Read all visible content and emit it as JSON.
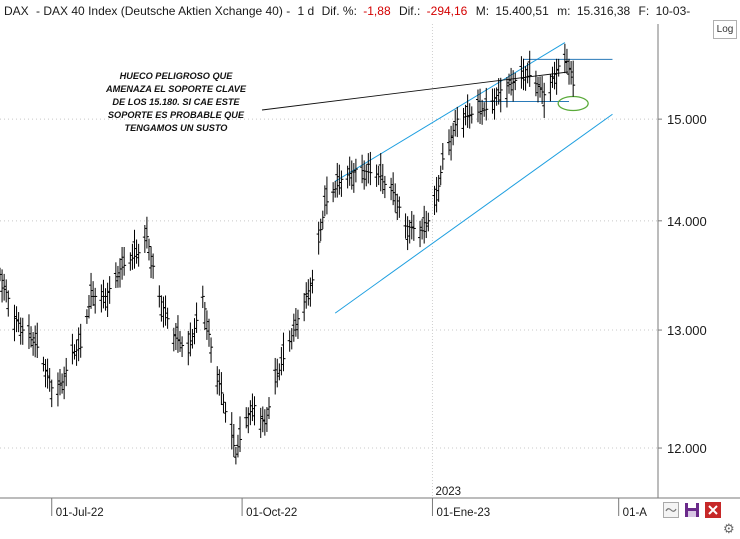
{
  "header": {
    "symbol": "DAX",
    "name": "DAX 40 Index (Deutsche Aktien Xchange 40)",
    "interval": "1 d",
    "dif_pct_label": "Dif. %:",
    "dif_pct": "-1,88",
    "dif_label": "Dif.:",
    "dif": "-294,16",
    "max_label": "M:",
    "max": "15.400,51",
    "min_label": "m:",
    "min": "15.316,38",
    "date_label": "F:",
    "date": "10-03-"
  },
  "log_button": "Log",
  "annotation": [
    "HUECO PELIGROSO QUE",
    "AMENAZA EL SOPORTE CLAVE",
    "DE LOS 15.180. SI CAE ESTE",
    "SOPORTE ES PROBABLE QUE",
    "TENGAMOS UN SUSTO"
  ],
  "chart_data": {
    "type": "ohlc",
    "title": "DAX 40 Index (Deutsche Aktien Xchange 40)",
    "xlabel": "",
    "ylabel": "",
    "y_scale": "log",
    "ylim": [
      11600,
      16000
    ],
    "xlim": [
      "2022-06-06",
      "2023-04-20"
    ],
    "y_ticks": [
      {
        "value": 12000,
        "label": "12.000"
      },
      {
        "value": 13000,
        "label": "13.000"
      },
      {
        "value": 14000,
        "label": "14.000"
      },
      {
        "value": 15000,
        "label": "15.000"
      }
    ],
    "x_ticks": [
      {
        "date": "2022-07-01",
        "label": "01-Jul-22"
      },
      {
        "date": "2022-10-01",
        "label": "01-Oct-22"
      },
      {
        "date": "2023-01-01",
        "label": "01-Ene-23"
      },
      {
        "date": "2023-04-01",
        "label": "01-A"
      }
    ],
    "year_marker": {
      "date": "2023-01-01",
      "label": "2023"
    },
    "grid": "horizontal dotted",
    "series": [
      {
        "type": "close",
        "points": [
          [
            "2022-06-06",
            13500
          ],
          [
            "2022-06-13",
            13120
          ],
          [
            "2022-06-17",
            13000
          ],
          [
            "2022-06-24",
            12850
          ],
          [
            "2022-07-01",
            12500
          ],
          [
            "2022-07-06",
            12550
          ],
          [
            "2022-07-11",
            12800
          ],
          [
            "2022-07-15",
            12850
          ],
          [
            "2022-07-20",
            13300
          ],
          [
            "2022-07-27",
            13300
          ],
          [
            "2022-08-03",
            13550
          ],
          [
            "2022-08-12",
            13700
          ],
          [
            "2022-08-16",
            13850
          ],
          [
            "2022-08-22",
            13300
          ],
          [
            "2022-08-29",
            12950
          ],
          [
            "2022-09-05",
            12800
          ],
          [
            "2022-09-12",
            13300
          ],
          [
            "2022-09-16",
            12850
          ],
          [
            "2022-09-23",
            12300
          ],
          [
            "2022-09-28",
            11950
          ],
          [
            "2022-10-03",
            12250
          ],
          [
            "2022-10-07",
            12350
          ],
          [
            "2022-10-12",
            12200
          ],
          [
            "2022-10-17",
            12550
          ],
          [
            "2022-10-24",
            12900
          ],
          [
            "2022-11-01",
            13300
          ],
          [
            "2022-11-04",
            13450
          ],
          [
            "2022-11-10",
            14150
          ],
          [
            "2022-11-18",
            14400
          ],
          [
            "2022-11-25",
            14500
          ],
          [
            "2022-12-05",
            14450
          ],
          [
            "2022-12-09",
            14350
          ],
          [
            "2022-12-14",
            14250
          ],
          [
            "2022-12-19",
            13950
          ],
          [
            "2022-12-28",
            13900
          ],
          [
            "2023-01-03",
            14200
          ],
          [
            "2023-01-06",
            14600
          ],
          [
            "2023-01-13",
            15000
          ],
          [
            "2023-01-20",
            15050
          ],
          [
            "2023-01-27",
            15100
          ],
          [
            "2023-02-03",
            15300
          ],
          [
            "2023-02-10",
            15400
          ],
          [
            "2023-02-17",
            15450
          ],
          [
            "2023-02-24",
            15250
          ],
          [
            "2023-03-03",
            15550
          ],
          [
            "2023-03-07",
            15600
          ],
          [
            "2023-03-10",
            15350
          ]
        ]
      }
    ],
    "trend_lines": [
      {
        "name": "channel-upper",
        "from": [
          "2022-11-15",
          14380
        ],
        "to": [
          "2023-03-06",
          15800
        ]
      },
      {
        "name": "channel-lower",
        "from": [
          "2022-11-15",
          13150
        ],
        "to": [
          "2023-03-29",
          15050
        ]
      },
      {
        "name": "resistance",
        "from": [
          "2023-02-14",
          15620
        ],
        "to": [
          "2023-03-29",
          15620
        ]
      },
      {
        "name": "support",
        "from": [
          "2023-01-23",
          15180
        ],
        "to": [
          "2023-03-08",
          15180
        ]
      }
    ],
    "annotation_text": "HUECO PELIGROSO QUE AMENAZA EL SOPORTE CLAVE DE LOS 15.180. SI CAE ESTE SOPORTE ES PROBABLE QUE TENGAMOS UN SUSTO",
    "colors": {
      "bars": "#000000",
      "channel": "#1e9fe0",
      "support": "#2a7ab8",
      "ellipse": "#5aaa3a",
      "negative": "#d40000"
    }
  }
}
